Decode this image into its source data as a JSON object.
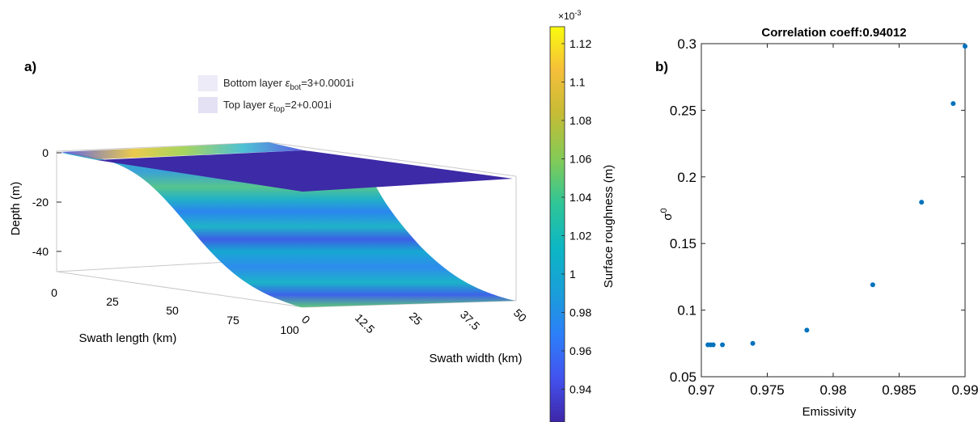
{
  "panel_a": {
    "label": "a)",
    "legend": [
      {
        "prefix": "Bottom layer ",
        "eps": "ε",
        "sub": "bot",
        "suffix": "=3+0.0001i",
        "color": "#ecebf7"
      },
      {
        "prefix": "Top layer ",
        "eps": "ε",
        "sub": "top",
        "suffix": "=2+0.001i",
        "color": "#e3e1f3"
      }
    ],
    "zlabel": "Depth (m)",
    "xlabel": "Swath length (km)",
    "ylabel": "Swath width (km)",
    "ztick_labels": [
      "0",
      "-20",
      "-40"
    ],
    "length_tick_labels": [
      "0",
      "25",
      "50",
      "75",
      "100"
    ],
    "width_tick_labels": [
      "0",
      "12.5",
      "25",
      "37.5",
      "50"
    ]
  },
  "colorbar": {
    "label": "Surface roughness (m)",
    "exponent_base": "×10",
    "exponent": "-3",
    "tick_labels": [
      "0.94",
      "0.96",
      "0.98",
      "1",
      "1.02",
      "1.04",
      "1.06",
      "1.08",
      "1.1",
      "1.12"
    ],
    "colormap": [
      "#3e26a8",
      "#4352ee",
      "#2d7ff9",
      "#199fd8",
      "#0cb6c4",
      "#2ec598",
      "#80cb58",
      "#c6bc35",
      "#f6bf3a",
      "#f9fb0e"
    ]
  },
  "chart_data": [
    {
      "type": "surface",
      "zlabel": "Depth (m)",
      "xlabel": "Swath length (km)",
      "ylabel": "Swath width (km)",
      "xlim": [
        0,
        100
      ],
      "ylim": [
        0,
        50
      ],
      "zlim": [
        -48,
        0
      ],
      "surfaces": [
        {
          "name": "Top layer",
          "depth_m": 0,
          "roughness_m": 0.00094
        },
        {
          "name": "Bottom layer",
          "depth_profile_m": [
            [
              0,
              0
            ],
            [
              25,
              -5
            ],
            [
              50,
              -24
            ],
            [
              75,
              -44
            ],
            [
              100,
              -48
            ]
          ]
        }
      ],
      "colorbar": {
        "label": "Surface roughness (m)",
        "range": [
          0.00093,
          0.00113
        ],
        "scale": 0.001
      }
    },
    {
      "type": "scatter",
      "title": "Correlation coeff:0.94012",
      "xlabel": "Emissivity",
      "ylabel": "σ0",
      "xlim": [
        0.97,
        0.99
      ],
      "ylim": [
        0.05,
        0.3
      ],
      "x_ticks": [
        0.97,
        0.975,
        0.98,
        0.985,
        0.99
      ],
      "y_ticks": [
        0.05,
        0.1,
        0.15,
        0.2,
        0.25,
        0.3
      ],
      "x_tick_labels": [
        "0.97",
        "0.975",
        "0.98",
        "0.985",
        "0.99"
      ],
      "y_tick_labels": [
        "0.05",
        "0.1",
        "0.15",
        "0.2",
        "0.25",
        "0.3"
      ],
      "point_color": "#0072bd",
      "points": [
        [
          0.9705,
          0.074
        ],
        [
          0.9707,
          0.074
        ],
        [
          0.9709,
          0.074
        ],
        [
          0.9716,
          0.074
        ],
        [
          0.9739,
          0.075
        ],
        [
          0.978,
          0.085
        ],
        [
          0.983,
          0.119
        ],
        [
          0.9867,
          0.181
        ],
        [
          0.9891,
          0.255
        ],
        [
          0.99,
          0.298
        ]
      ]
    }
  ],
  "panel_b": {
    "label": "b)",
    "title": "Correlation coeff:0.94012",
    "xlabel": "Emissivity",
    "ylabel_base": "σ",
    "ylabel_sup": "0"
  }
}
